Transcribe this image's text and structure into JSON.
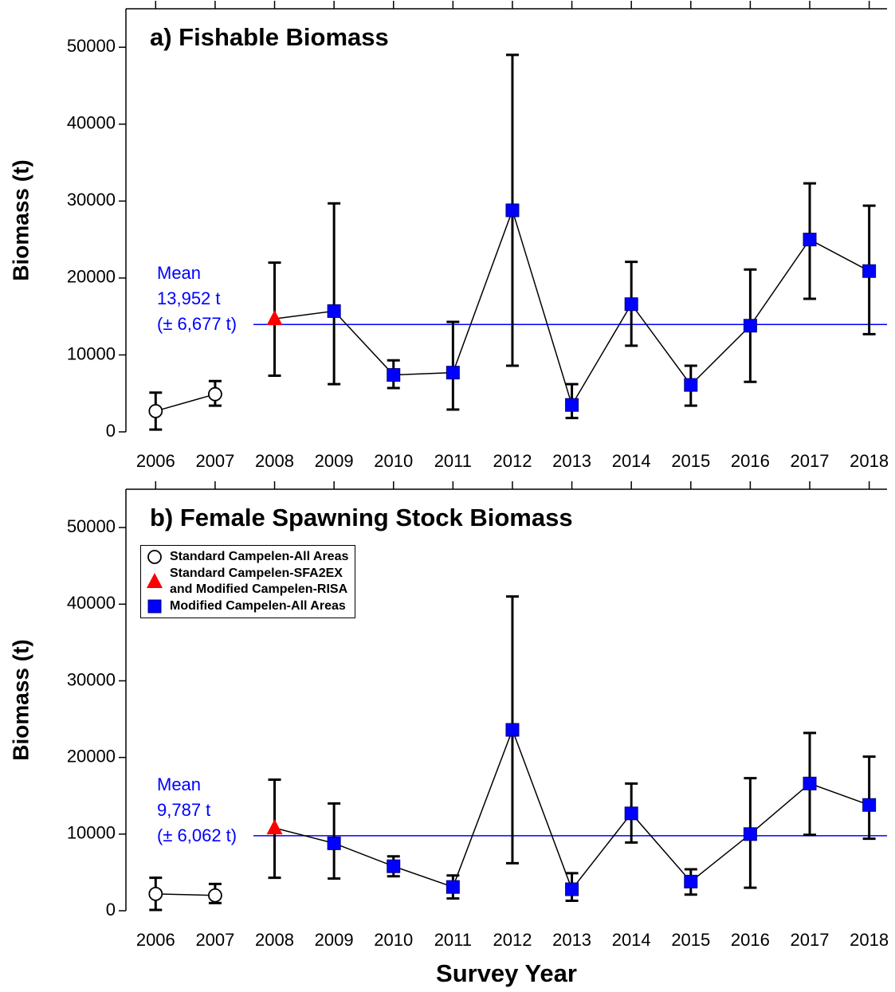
{
  "chart_data": [
    {
      "type": "scatter",
      "title": "a) Fishable Biomass",
      "y_label": "Biomass (t)",
      "x": [
        2006,
        2007,
        2008,
        2009,
        2010,
        2011,
        2012,
        2013,
        2014,
        2015,
        2016,
        2017,
        2018
      ],
      "xlim": [
        2005.5,
        2018.3
      ],
      "ylim": [
        0,
        55000
      ],
      "yticks": [
        0,
        10000,
        20000,
        30000,
        40000,
        50000
      ],
      "series": [
        {
          "name": "Standard Campelen-All Areas",
          "color": "#ffffff",
          "marker": "circle",
          "values": [
            2700,
            4900,
            null,
            null,
            null,
            null,
            null,
            null,
            null,
            null,
            null,
            null,
            null
          ],
          "lower": [
            300,
            3400,
            null,
            null,
            null,
            null,
            null,
            null,
            null,
            null,
            null,
            null,
            null
          ],
          "upper": [
            5100,
            6600,
            null,
            null,
            null,
            null,
            null,
            null,
            null,
            null,
            null,
            null,
            null
          ]
        },
        {
          "name": "Standard Campelen-SFA2EX\nand Modified Campelen-RISA",
          "color": "#ff0000",
          "marker": "triangle",
          "values": [
            null,
            null,
            14700,
            null,
            null,
            null,
            null,
            null,
            null,
            null,
            null,
            null,
            null
          ],
          "lower": [
            null,
            null,
            7300,
            null,
            null,
            null,
            null,
            null,
            null,
            null,
            null,
            null,
            null
          ],
          "upper": [
            null,
            null,
            22000,
            null,
            null,
            null,
            null,
            null,
            null,
            null,
            null,
            null,
            null
          ]
        },
        {
          "name": "Modified Campelen-All Areas",
          "color": "#0000ff",
          "marker": "square",
          "values": [
            null,
            null,
            null,
            15700,
            7400,
            7700,
            28800,
            3500,
            16600,
            6100,
            13800,
            25000,
            20900
          ],
          "lower": [
            null,
            null,
            null,
            6200,
            5700,
            2900,
            8600,
            1800,
            11200,
            3400,
            6500,
            17300,
            12700
          ],
          "upper": [
            null,
            null,
            null,
            29700,
            9300,
            14300,
            49000,
            6200,
            22100,
            8600,
            21100,
            32300,
            29400
          ]
        }
      ],
      "mean_line": {
        "value": 13952,
        "label": "Mean\n13,952 t\n(± 6,677 t)",
        "color": "#0000ff"
      }
    },
    {
      "type": "scatter",
      "title": "b) Female Spawning Stock Biomass",
      "y_label": "Biomass (t)",
      "x_label": "Survey Year",
      "x": [
        2006,
        2007,
        2008,
        2009,
        2010,
        2011,
        2012,
        2013,
        2014,
        2015,
        2016,
        2017,
        2018
      ],
      "xlim": [
        2005.5,
        2018.3
      ],
      "ylim": [
        0,
        55000
      ],
      "yticks": [
        0,
        10000,
        20000,
        30000,
        40000,
        50000
      ],
      "legend": "upper left",
      "series": [
        {
          "name": "Standard Campelen-All Areas",
          "color": "#ffffff",
          "marker": "circle",
          "values": [
            2200,
            2000,
            null,
            null,
            null,
            null,
            null,
            null,
            null,
            null,
            null,
            null,
            null
          ],
          "lower": [
            100,
            1000,
            null,
            null,
            null,
            null,
            null,
            null,
            null,
            null,
            null,
            null,
            null
          ],
          "upper": [
            4300,
            3500,
            null,
            null,
            null,
            null,
            null,
            null,
            null,
            null,
            null,
            null,
            null
          ]
        },
        {
          "name": "Standard Campelen-SFA2EX\nand Modified Campelen-RISA",
          "color": "#ff0000",
          "marker": "triangle",
          "values": [
            null,
            null,
            10800,
            null,
            null,
            null,
            null,
            null,
            null,
            null,
            null,
            null,
            null
          ],
          "lower": [
            null,
            null,
            4300,
            null,
            null,
            null,
            null,
            null,
            null,
            null,
            null,
            null,
            null
          ],
          "upper": [
            null,
            null,
            17100,
            null,
            null,
            null,
            null,
            null,
            null,
            null,
            null,
            null,
            null
          ]
        },
        {
          "name": "Modified Campelen-All Areas",
          "color": "#0000ff",
          "marker": "square",
          "values": [
            null,
            null,
            null,
            8800,
            5800,
            3100,
            23600,
            2800,
            12700,
            3800,
            10000,
            16600,
            13800
          ],
          "lower": [
            null,
            null,
            null,
            4200,
            4500,
            1600,
            6200,
            1300,
            8900,
            2100,
            3000,
            9900,
            9400
          ],
          "upper": [
            null,
            null,
            null,
            14000,
            7100,
            4600,
            41000,
            4900,
            16600,
            5400,
            17300,
            23200,
            20100
          ]
        }
      ],
      "mean_line": {
        "value": 9787,
        "label": "Mean\n9,787 t\n(± 6,062 t)",
        "color": "#0000ff"
      }
    }
  ]
}
